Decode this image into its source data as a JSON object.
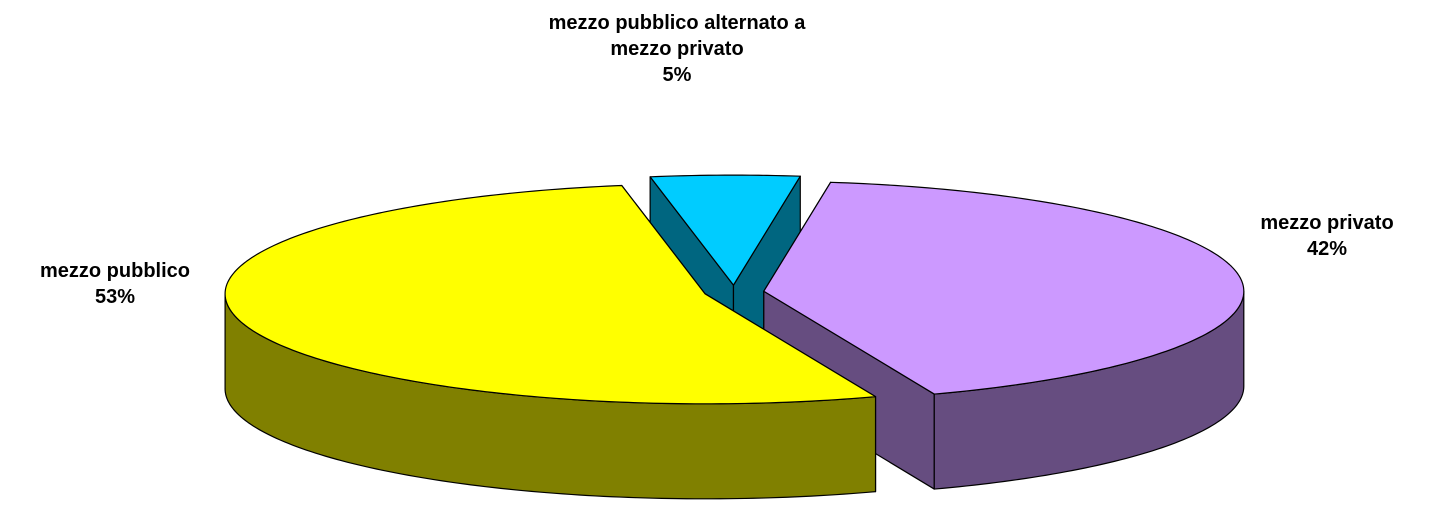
{
  "chart_data": {
    "type": "pie3d",
    "categories": [
      "mezzo pubblico alternato a mezzo privato",
      "mezzo privato",
      "mezzo pubblico"
    ],
    "values": [
      5,
      42,
      53
    ],
    "value_labels": [
      "5%",
      "42%",
      "53%"
    ],
    "colors": [
      "#00ccff",
      "#cc99ff",
      "#ffff00"
    ]
  }
}
